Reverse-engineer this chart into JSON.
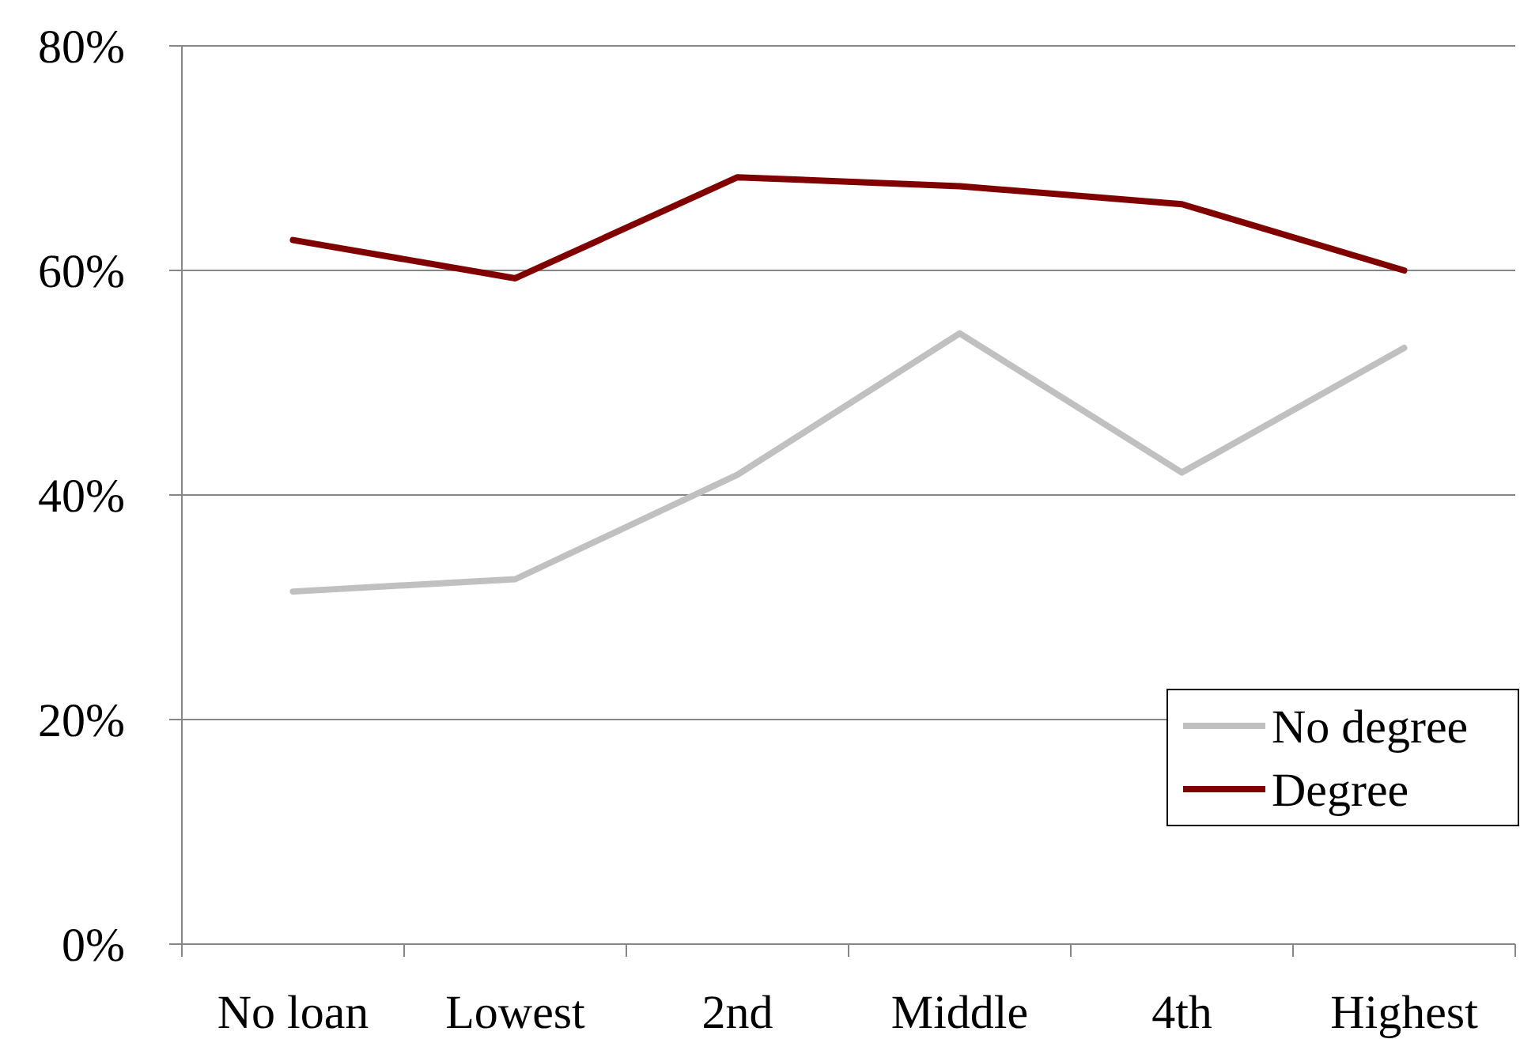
{
  "chart_data": {
    "type": "line",
    "categories": [
      "No loan",
      "Lowest",
      "2nd",
      "Middle",
      "4th",
      "Highest"
    ],
    "series": [
      {
        "name": "No degree",
        "color": "#c0c0c0",
        "values": [
          31.4,
          32.5,
          41.8,
          54.4,
          42.0,
          53.1
        ]
      },
      {
        "name": "Degree",
        "color": "#800000",
        "values": [
          62.7,
          59.3,
          68.3,
          67.5,
          65.9,
          60.0
        ]
      }
    ],
    "ylim": [
      0,
      80
    ],
    "yticks": [
      {
        "value": 0,
        "label": "0%"
      },
      {
        "value": 20,
        "label": "20%"
      },
      {
        "value": 40,
        "label": "40%"
      },
      {
        "value": 60,
        "label": "60%"
      },
      {
        "value": 80,
        "label": "80%"
      }
    ],
    "grid": "y",
    "legend": "bottom right",
    "marker": "none",
    "line_style": "solid"
  }
}
